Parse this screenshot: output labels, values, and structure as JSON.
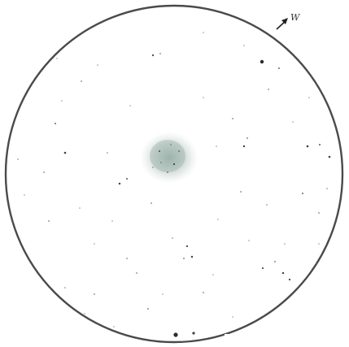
{
  "field": {
    "orientation_label": "W",
    "ring_color": "#4a4a4a",
    "star_color": "#2b2b2b",
    "nebula_color": "#6f8f86"
  }
}
